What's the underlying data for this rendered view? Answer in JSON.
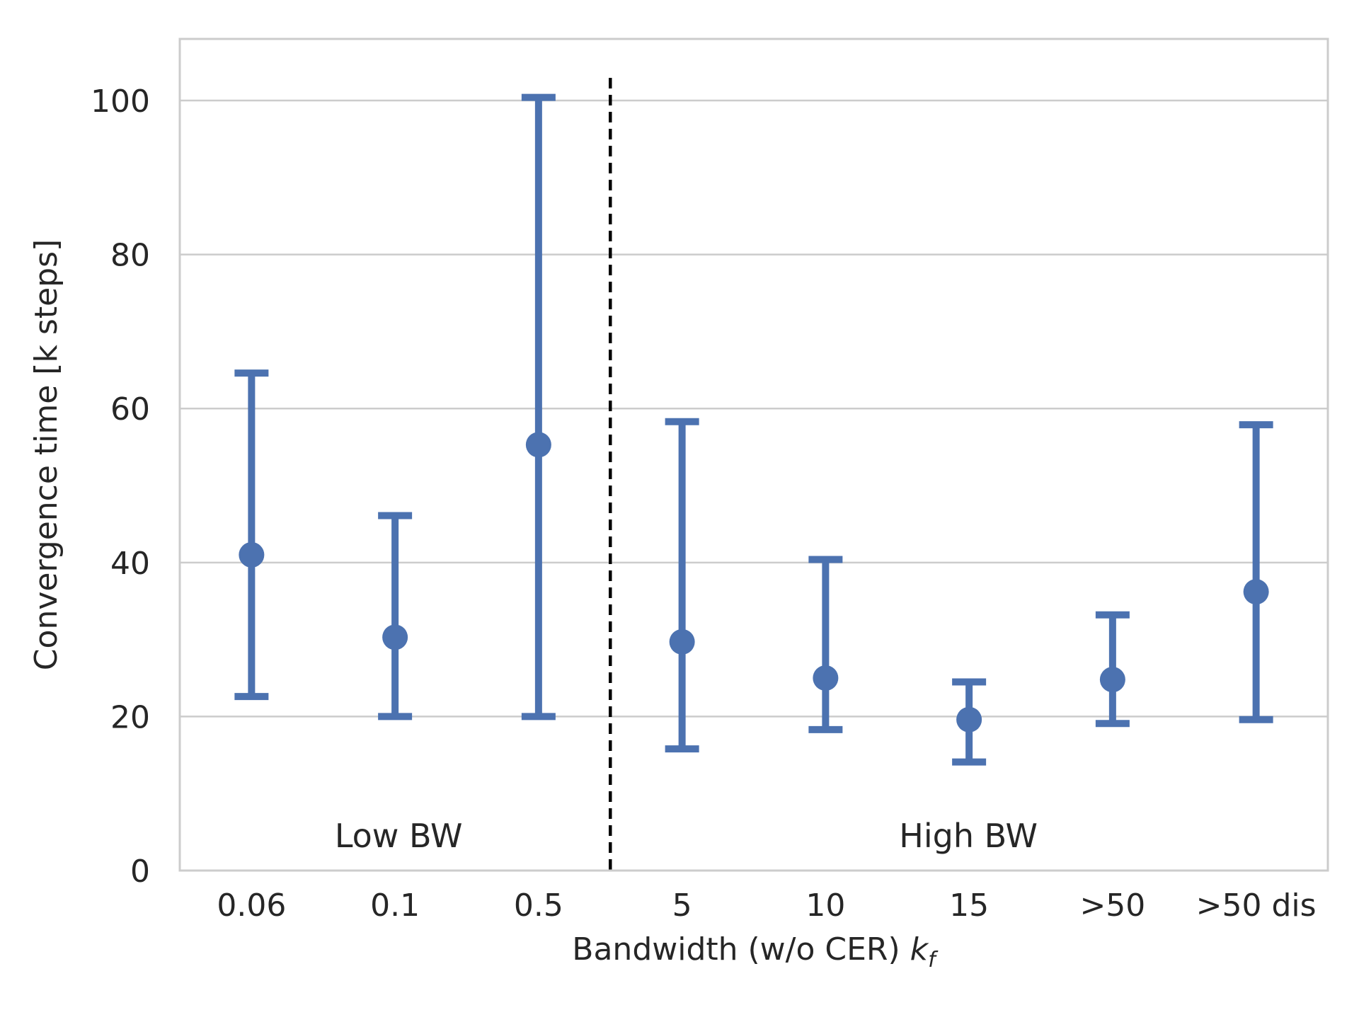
{
  "chart_data": {
    "type": "scatter",
    "subtype": "point-with-errorbars",
    "title": "",
    "xlabel": "Bandwidth (w/o CER)",
    "xlabel_symbol": "k",
    "xlabel_subscript": "f",
    "ylabel": "Convergence time [k steps]",
    "categories": [
      "0.06",
      "0.1",
      "0.5",
      "5",
      "10",
      "15",
      ">50",
      ">50 dis"
    ],
    "values": [
      41,
      30.3,
      55.3,
      29.7,
      25,
      19.6,
      24.8,
      36.2
    ],
    "error_low": [
      22.6,
      20,
      20,
      15.8,
      18.3,
      14.1,
      19.1,
      19.6
    ],
    "error_high": [
      64.6,
      46.1,
      100.4,
      58.3,
      40.4,
      24.5,
      33.2,
      57.9
    ],
    "ylim": [
      0,
      108
    ],
    "yticks": [
      "0",
      "20",
      "40",
      "60",
      "80",
      "100"
    ],
    "ytick_values": [
      0,
      20,
      40,
      60,
      80,
      100
    ],
    "grid": true,
    "divider_after_category": 2,
    "region_labels": [
      "Low BW",
      "High BW"
    ],
    "colors": {
      "series": "#4c72b0",
      "grid": "#cccccc",
      "spine": "#cccccc",
      "divider": "#000000"
    }
  }
}
